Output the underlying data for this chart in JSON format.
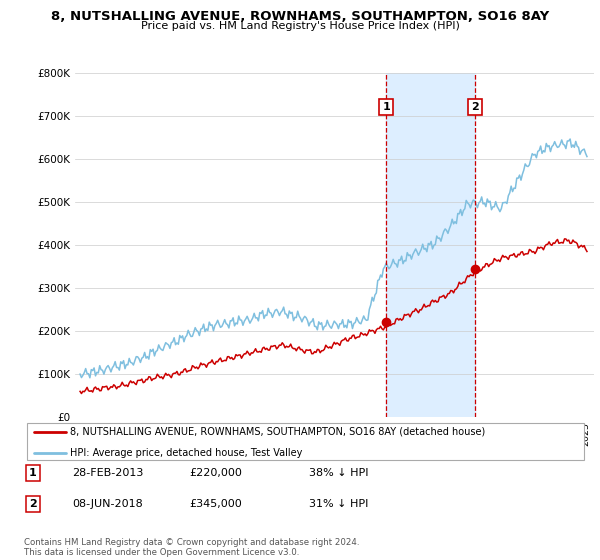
{
  "title": "8, NUTSHALLING AVENUE, ROWNHAMS, SOUTHAMPTON, SO16 8AY",
  "subtitle": "Price paid vs. HM Land Registry's House Price Index (HPI)",
  "ylabel_ticks": [
    "£0",
    "£100K",
    "£200K",
    "£300K",
    "£400K",
    "£500K",
    "£600K",
    "£700K",
    "£800K"
  ],
  "ylim": [
    0,
    800000
  ],
  "sale1_date": 2013.17,
  "sale1_price": 220000,
  "sale2_date": 2018.44,
  "sale2_price": 345000,
  "legend_property": "8, NUTSHALLING AVENUE, ROWNHAMS, SOUTHAMPTON, SO16 8AY (detached house)",
  "legend_hpi": "HPI: Average price, detached house, Test Valley",
  "table_rows": [
    [
      "1",
      "28-FEB-2013",
      "£220,000",
      "38% ↓ HPI"
    ],
    [
      "2",
      "08-JUN-2018",
      "£345,000",
      "31% ↓ HPI"
    ]
  ],
  "footer": "Contains HM Land Registry data © Crown copyright and database right 2024.\nThis data is licensed under the Open Government Licence v3.0.",
  "hpi_color": "#7fbfdf",
  "property_color": "#cc0000",
  "highlight_color": "#ddeeff",
  "vline_color": "#cc0000",
  "grid_color": "#cccccc"
}
